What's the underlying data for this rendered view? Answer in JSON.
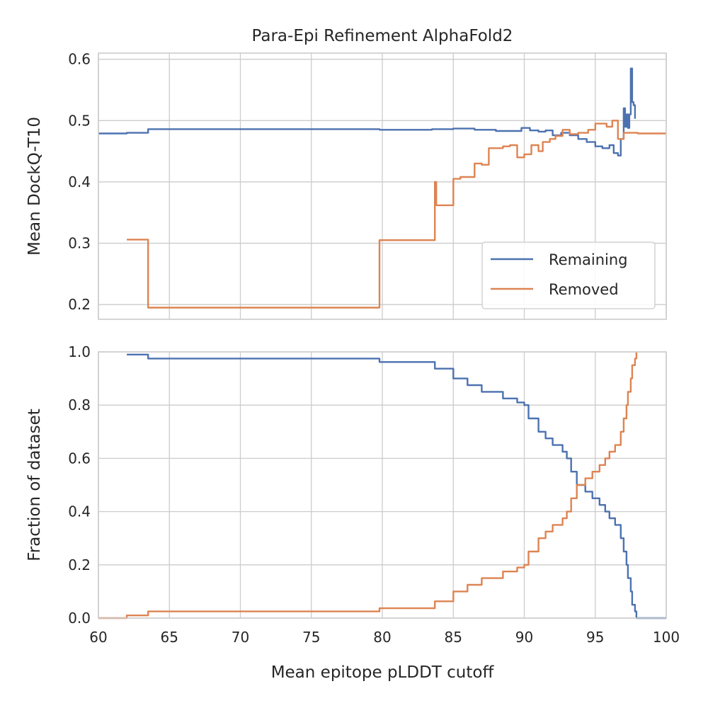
{
  "chart_data": [
    {
      "type": "line",
      "title": "Para-Epi Refinement AlphaFold2",
      "xlabel": "",
      "ylabel": "Mean DockQ-T10",
      "xlim": [
        60,
        100
      ],
      "ylim": [
        0.176,
        0.61
      ],
      "yticks": [
        0.2,
        0.3,
        0.4,
        0.5,
        0.6
      ],
      "ytick_labels": [
        "0.2",
        "0.3",
        "0.4",
        "0.5",
        "0.6"
      ],
      "grid": true,
      "legend_position": "lower-right",
      "series": [
        {
          "name": "Remaining",
          "color": "#4c72b0",
          "step": true,
          "points": [
            [
              60,
              0.479
            ],
            [
              62.0,
              0.48
            ],
            [
              63.5,
              0.486
            ],
            [
              79.8,
              0.485
            ],
            [
              83.5,
              0.486
            ],
            [
              85.0,
              0.487
            ],
            [
              86.5,
              0.485
            ],
            [
              88.0,
              0.483
            ],
            [
              89.0,
              0.483
            ],
            [
              89.8,
              0.488
            ],
            [
              90.4,
              0.484
            ],
            [
              91.0,
              0.482
            ],
            [
              91.5,
              0.484
            ],
            [
              92.0,
              0.476
            ],
            [
              92.6,
              0.48
            ],
            [
              93.2,
              0.476
            ],
            [
              93.8,
              0.47
            ],
            [
              94.4,
              0.465
            ],
            [
              95.0,
              0.458
            ],
            [
              95.5,
              0.455
            ],
            [
              96.0,
              0.46
            ],
            [
              96.3,
              0.447
            ],
            [
              96.6,
              0.443
            ],
            [
              96.8,
              0.47
            ],
            [
              97.0,
              0.52
            ],
            [
              97.1,
              0.49
            ],
            [
              97.2,
              0.51
            ],
            [
              97.3,
              0.488
            ],
            [
              97.4,
              0.51
            ],
            [
              97.5,
              0.585
            ],
            [
              97.6,
              0.53
            ],
            [
              97.7,
              0.525
            ],
            [
              97.8,
              0.503
            ]
          ]
        },
        {
          "name": "Removed",
          "color": "#dd8452",
          "step": true,
          "points": [
            [
              62.0,
              0.306
            ],
            [
              63.5,
              0.195
            ],
            [
              79.8,
              0.305
            ],
            [
              83.7,
              0.4
            ],
            [
              83.8,
              0.362
            ],
            [
              85.0,
              0.405
            ],
            [
              85.5,
              0.408
            ],
            [
              86.5,
              0.43
            ],
            [
              87.0,
              0.428
            ],
            [
              87.5,
              0.455
            ],
            [
              88.5,
              0.458
            ],
            [
              89.0,
              0.46
            ],
            [
              89.5,
              0.44
            ],
            [
              90.0,
              0.445
            ],
            [
              90.5,
              0.46
            ],
            [
              91.0,
              0.45
            ],
            [
              91.3,
              0.465
            ],
            [
              91.8,
              0.47
            ],
            [
              92.2,
              0.475
            ],
            [
              92.7,
              0.485
            ],
            [
              93.2,
              0.478
            ],
            [
              93.8,
              0.48
            ],
            [
              94.5,
              0.485
            ],
            [
              95.0,
              0.495
            ],
            [
              95.8,
              0.49
            ],
            [
              96.2,
              0.5
            ],
            [
              96.6,
              0.47
            ],
            [
              97.0,
              0.48
            ],
            [
              98.0,
              0.479
            ],
            [
              100,
              0.479
            ]
          ]
        }
      ]
    },
    {
      "type": "line",
      "title": "",
      "xlabel": "Mean epitope pLDDT cutoff",
      "ylabel": "Fraction of dataset",
      "xlim": [
        60,
        100
      ],
      "ylim": [
        0,
        1
      ],
      "xticks": [
        60,
        65,
        70,
        75,
        80,
        85,
        90,
        95,
        100
      ],
      "xtick_labels": [
        "60",
        "65",
        "70",
        "75",
        "80",
        "85",
        "90",
        "95",
        "100"
      ],
      "yticks": [
        0,
        0.2,
        0.4,
        0.6,
        0.8,
        1.0
      ],
      "ytick_labels": [
        "0.0",
        "0.2",
        "0.4",
        "0.6",
        "0.8",
        "1.0"
      ],
      "grid": true,
      "series": [
        {
          "name": "Remaining",
          "color": "#4c72b0",
          "step": true,
          "points": [
            [
              62.0,
              0.99
            ],
            [
              63.5,
              0.975
            ],
            [
              79.8,
              0.962
            ],
            [
              83.7,
              0.937
            ],
            [
              85.0,
              0.9
            ],
            [
              86.0,
              0.875
            ],
            [
              87.0,
              0.85
            ],
            [
              88.5,
              0.825
            ],
            [
              89.5,
              0.81
            ],
            [
              90.0,
              0.8
            ],
            [
              90.3,
              0.75
            ],
            [
              91.0,
              0.7
            ],
            [
              91.5,
              0.675
            ],
            [
              92.0,
              0.65
            ],
            [
              92.7,
              0.625
            ],
            [
              93.0,
              0.6
            ],
            [
              93.3,
              0.55
            ],
            [
              93.7,
              0.5
            ],
            [
              94.3,
              0.475
            ],
            [
              94.8,
              0.45
            ],
            [
              95.3,
              0.425
            ],
            [
              95.7,
              0.4
            ],
            [
              96.0,
              0.375
            ],
            [
              96.4,
              0.35
            ],
            [
              96.8,
              0.3
            ],
            [
              97.0,
              0.25
            ],
            [
              97.2,
              0.2
            ],
            [
              97.3,
              0.15
            ],
            [
              97.5,
              0.1
            ],
            [
              97.6,
              0.05
            ],
            [
              97.8,
              0.025
            ],
            [
              97.9,
              0.0
            ],
            [
              100,
              0.0
            ]
          ]
        },
        {
          "name": "Removed",
          "color": "#dd8452",
          "step": true,
          "points": [
            [
              60,
              0.0
            ],
            [
              62.0,
              0.01
            ],
            [
              63.5,
              0.025
            ],
            [
              79.8,
              0.037
            ],
            [
              83.7,
              0.063
            ],
            [
              85.0,
              0.1
            ],
            [
              86.0,
              0.125
            ],
            [
              87.0,
              0.15
            ],
            [
              88.5,
              0.175
            ],
            [
              89.5,
              0.19
            ],
            [
              90.0,
              0.2
            ],
            [
              90.3,
              0.25
            ],
            [
              91.0,
              0.3
            ],
            [
              91.5,
              0.325
            ],
            [
              92.0,
              0.35
            ],
            [
              92.7,
              0.375
            ],
            [
              93.0,
              0.4
            ],
            [
              93.3,
              0.45
            ],
            [
              93.7,
              0.5
            ],
            [
              94.3,
              0.525
            ],
            [
              94.8,
              0.55
            ],
            [
              95.3,
              0.575
            ],
            [
              95.7,
              0.6
            ],
            [
              96.0,
              0.625
            ],
            [
              96.4,
              0.65
            ],
            [
              96.8,
              0.7
            ],
            [
              97.0,
              0.75
            ],
            [
              97.2,
              0.8
            ],
            [
              97.3,
              0.85
            ],
            [
              97.5,
              0.9
            ],
            [
              97.6,
              0.95
            ],
            [
              97.8,
              0.975
            ],
            [
              97.9,
              1.0
            ]
          ]
        }
      ]
    }
  ]
}
